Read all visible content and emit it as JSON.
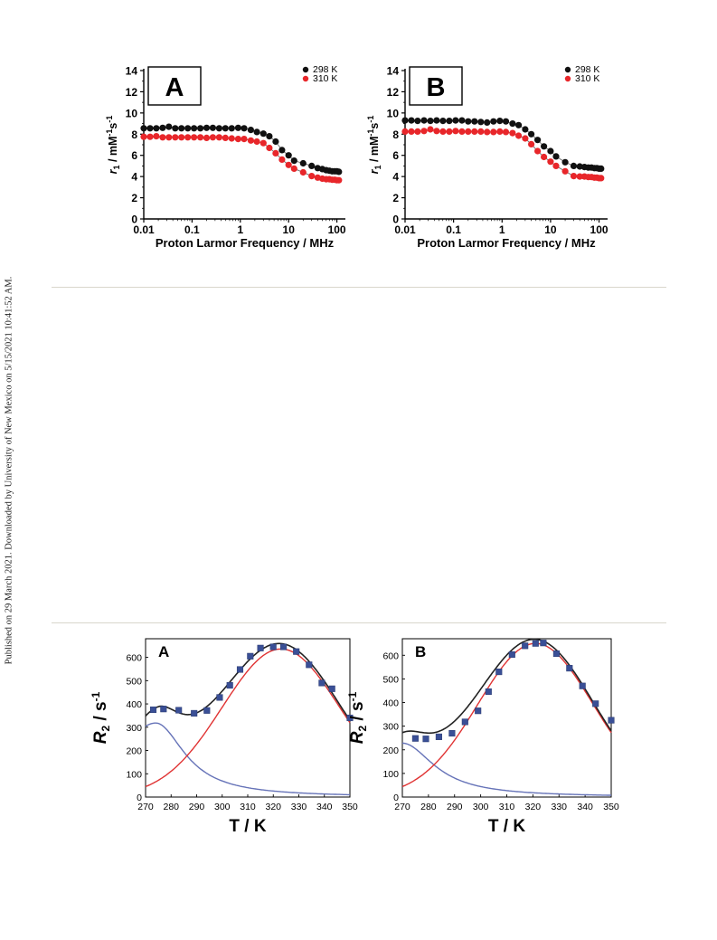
{
  "side_note": "Published on 29 March 2021. Downloaded by University of New Mexico on 5/15/2021 10:41:52 AM.",
  "colors": {
    "black_series": "#111111",
    "red_series": "#e8262a",
    "fit_line": "#777777",
    "blue_marker": "#3a4f96",
    "red_curve": "#e03333",
    "blue_curve": "#6673b8",
    "black_curve": "#222222",
    "divider": "#d9d6cc"
  },
  "chart_data": [
    {
      "id": "A-top",
      "type": "scatter",
      "panel_label": "A",
      "xlabel": "Proton Larmor Frequency / MHz",
      "ylabel": "r1 / mM-1s-1",
      "x_scale": "log",
      "xlim": [
        0.01,
        150
      ],
      "ylim": [
        0,
        14
      ],
      "x_ticks": [
        0.01,
        0.1,
        1,
        10,
        100
      ],
      "x_tick_labels": [
        "0.01",
        "0.1",
        "1",
        "10",
        "100"
      ],
      "y_ticks": [
        0,
        2,
        4,
        6,
        8,
        10,
        12,
        14
      ],
      "legend": "top-right",
      "series": [
        {
          "name": "298 K",
          "x": [
            0.01,
            0.0135,
            0.0182,
            0.0246,
            0.0332,
            0.0448,
            0.0605,
            0.0816,
            0.11,
            0.149,
            0.2,
            0.27,
            0.365,
            0.49,
            0.665,
            0.9,
            1.2,
            1.65,
            2.2,
            3.0,
            4.0,
            5.4,
            7.3,
            10,
            13,
            20,
            30,
            40,
            50,
            60,
            70,
            80,
            90,
            100,
            110
          ],
          "y": [
            8.55,
            8.55,
            8.55,
            8.6,
            8.7,
            8.55,
            8.55,
            8.55,
            8.55,
            8.55,
            8.6,
            8.6,
            8.55,
            8.55,
            8.55,
            8.6,
            8.55,
            8.4,
            8.2,
            8.05,
            7.8,
            7.3,
            6.5,
            6.0,
            5.5,
            5.25,
            5.0,
            4.8,
            4.7,
            4.6,
            4.55,
            4.5,
            4.5,
            4.5,
            4.45
          ]
        },
        {
          "name": "310 K",
          "x": [
            0.01,
            0.0135,
            0.0182,
            0.0246,
            0.0332,
            0.0448,
            0.0605,
            0.0816,
            0.11,
            0.149,
            0.2,
            0.27,
            0.365,
            0.49,
            0.665,
            0.9,
            1.2,
            1.65,
            2.2,
            3.0,
            4.0,
            5.4,
            7.3,
            10,
            13,
            20,
            30,
            40,
            50,
            60,
            70,
            80,
            90,
            100,
            110
          ],
          "y": [
            7.75,
            7.75,
            7.8,
            7.7,
            7.7,
            7.7,
            7.7,
            7.7,
            7.7,
            7.7,
            7.65,
            7.7,
            7.7,
            7.65,
            7.6,
            7.55,
            7.55,
            7.4,
            7.3,
            7.15,
            6.7,
            6.2,
            5.6,
            5.1,
            4.75,
            4.4,
            4.05,
            3.9,
            3.8,
            3.75,
            3.75,
            3.7,
            3.7,
            3.65,
            3.65
          ]
        }
      ]
    },
    {
      "id": "B-top",
      "type": "scatter",
      "panel_label": "B",
      "xlabel": "Proton Larmor Frequency / MHz",
      "ylabel": "r1 / mM-1s-1",
      "x_scale": "log",
      "xlim": [
        0.01,
        150
      ],
      "ylim": [
        0,
        14
      ],
      "x_ticks": [
        0.01,
        0.1,
        1,
        10,
        100
      ],
      "x_tick_labels": [
        "0.01",
        "0.1",
        "1",
        "10",
        "100"
      ],
      "y_ticks": [
        0,
        2,
        4,
        6,
        8,
        10,
        12,
        14
      ],
      "legend": "top-right",
      "series": [
        {
          "name": "298 K",
          "x": [
            0.01,
            0.0135,
            0.0182,
            0.0246,
            0.0332,
            0.0448,
            0.0605,
            0.0816,
            0.11,
            0.149,
            0.2,
            0.27,
            0.365,
            0.49,
            0.665,
            0.9,
            1.2,
            1.65,
            2.2,
            3.0,
            4.0,
            5.4,
            7.3,
            10,
            13,
            20,
            30,
            40,
            50,
            60,
            70,
            80,
            90,
            100,
            110
          ],
          "y": [
            9.3,
            9.3,
            9.25,
            9.3,
            9.25,
            9.3,
            9.25,
            9.25,
            9.3,
            9.3,
            9.2,
            9.2,
            9.15,
            9.1,
            9.2,
            9.25,
            9.2,
            9.0,
            8.85,
            8.45,
            8.0,
            7.45,
            6.85,
            6.4,
            5.9,
            5.35,
            5.0,
            4.95,
            4.9,
            4.85,
            4.85,
            4.8,
            4.8,
            4.75,
            4.75
          ]
        },
        {
          "name": "310 K",
          "x": [
            0.01,
            0.0135,
            0.0182,
            0.0246,
            0.0332,
            0.0448,
            0.0605,
            0.0816,
            0.11,
            0.149,
            0.2,
            0.27,
            0.365,
            0.49,
            0.665,
            0.9,
            1.2,
            1.65,
            2.2,
            3.0,
            4.0,
            5.4,
            7.3,
            10,
            13,
            20,
            30,
            40,
            50,
            60,
            70,
            80,
            90,
            100,
            110
          ],
          "y": [
            8.25,
            8.25,
            8.25,
            8.3,
            8.45,
            8.3,
            8.25,
            8.25,
            8.3,
            8.25,
            8.25,
            8.25,
            8.25,
            8.2,
            8.2,
            8.25,
            8.2,
            8.1,
            7.85,
            7.6,
            7.05,
            6.4,
            5.85,
            5.4,
            5.0,
            4.5,
            4.05,
            4.0,
            4.0,
            3.95,
            3.95,
            3.9,
            3.9,
            3.85,
            3.85
          ]
        }
      ]
    },
    {
      "id": "A-bottom",
      "type": "line",
      "panel_label": "A",
      "xlabel": "T / K",
      "ylabel": "R2 / s-1",
      "xlim": [
        270,
        350
      ],
      "ylim": [
        0,
        680
      ],
      "x_ticks": [
        270,
        280,
        290,
        300,
        310,
        320,
        330,
        340,
        350
      ],
      "y_ticks": [
        0,
        100,
        200,
        300,
        400,
        500,
        600
      ],
      "points": {
        "x": [
          273,
          277,
          283,
          289,
          294,
          299,
          303,
          307,
          311,
          315,
          320,
          324,
          329,
          334,
          339,
          343,
          350
        ],
        "y": [
          375,
          378,
          373,
          360,
          372,
          428,
          480,
          548,
          605,
          640,
          645,
          645,
          625,
          568,
          490,
          465,
          340
        ]
      },
      "curves": {
        "blue": {
          "peak_x": 274,
          "peak_y": 318,
          "width": 13
        },
        "red": {
          "peak_x": 323,
          "peak_y": 636,
          "width": 23
        },
        "black": "sum"
      }
    },
    {
      "id": "B-bottom",
      "type": "line",
      "panel_label": "B",
      "xlabel": "T / K",
      "ylabel": "R2 / s-1",
      "xlim": [
        270,
        350
      ],
      "ylim": [
        0,
        670
      ],
      "x_ticks": [
        270,
        280,
        290,
        300,
        310,
        320,
        330,
        340,
        350
      ],
      "y_ticks": [
        0,
        100,
        200,
        300,
        400,
        500,
        600
      ],
      "points": {
        "x": [
          275,
          279,
          284,
          289,
          294,
          299,
          303,
          307,
          312,
          317,
          321,
          324,
          329,
          334,
          339,
          344,
          350
        ],
        "y": [
          248,
          246,
          255,
          270,
          318,
          365,
          446,
          530,
          603,
          640,
          650,
          652,
          607,
          545,
          470,
          395,
          325
        ]
      },
      "curves": {
        "blue": {
          "peak_x": 270,
          "peak_y": 228,
          "width": 14
        },
        "red": {
          "peak_x": 321,
          "peak_y": 650,
          "width": 22
        },
        "black": "sum"
      }
    }
  ]
}
